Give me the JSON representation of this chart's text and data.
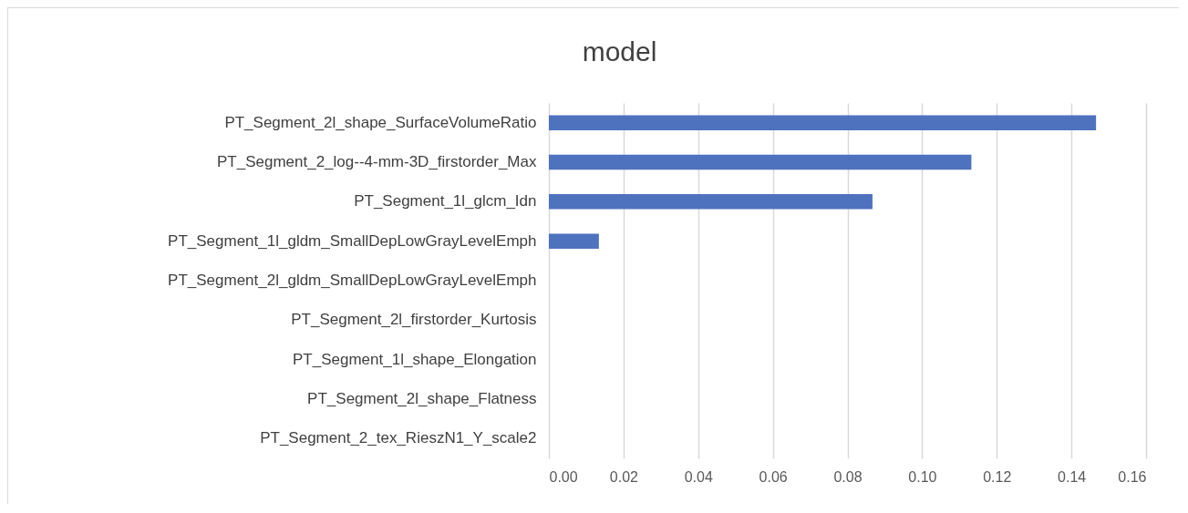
{
  "chart_data": {
    "type": "bar",
    "orientation": "horizontal",
    "title": "model",
    "categories": [
      "PT_Segment_2l_shape_SurfaceVolumeRatio",
      "PT_Segment_2_log--4-mm-3D_firstorder_Max",
      "PT_Segment_1l_glcm_Idn",
      "PT_Segment_1l_gldm_SmallDepLowGrayLevelEmph",
      "PT_Segment_2l_gldm_SmallDepLowGrayLevelEmph",
      "PT_Segment_2l_firstorder_Kurtosis",
      "PT_Segment_1l_shape_Elongation",
      "PT_Segment_2l_shape_Flatness",
      "PT_Segment_2_tex_RieszN1_Y_scale2"
    ],
    "values": [
      0.1466,
      0.1132,
      0.0867,
      0.0134,
      0,
      0,
      0,
      0,
      0
    ],
    "color": "#4f72be",
    "xlim": [
      0,
      0.16
    ],
    "xticks": [
      {
        "value": 0,
        "label": "0.00"
      },
      {
        "value": 0.02,
        "label": "0.02"
      },
      {
        "value": 0.04,
        "label": "0.04"
      },
      {
        "value": 0.06,
        "label": "0.06"
      },
      {
        "value": 0.08,
        "label": "0.08"
      },
      {
        "value": 0.1,
        "label": "0.10"
      },
      {
        "value": 0.12,
        "label": "0.12"
      },
      {
        "value": 0.14,
        "label": "0.14"
      },
      {
        "value": 0.16,
        "label": "0.16"
      }
    ],
    "grid": "x"
  }
}
